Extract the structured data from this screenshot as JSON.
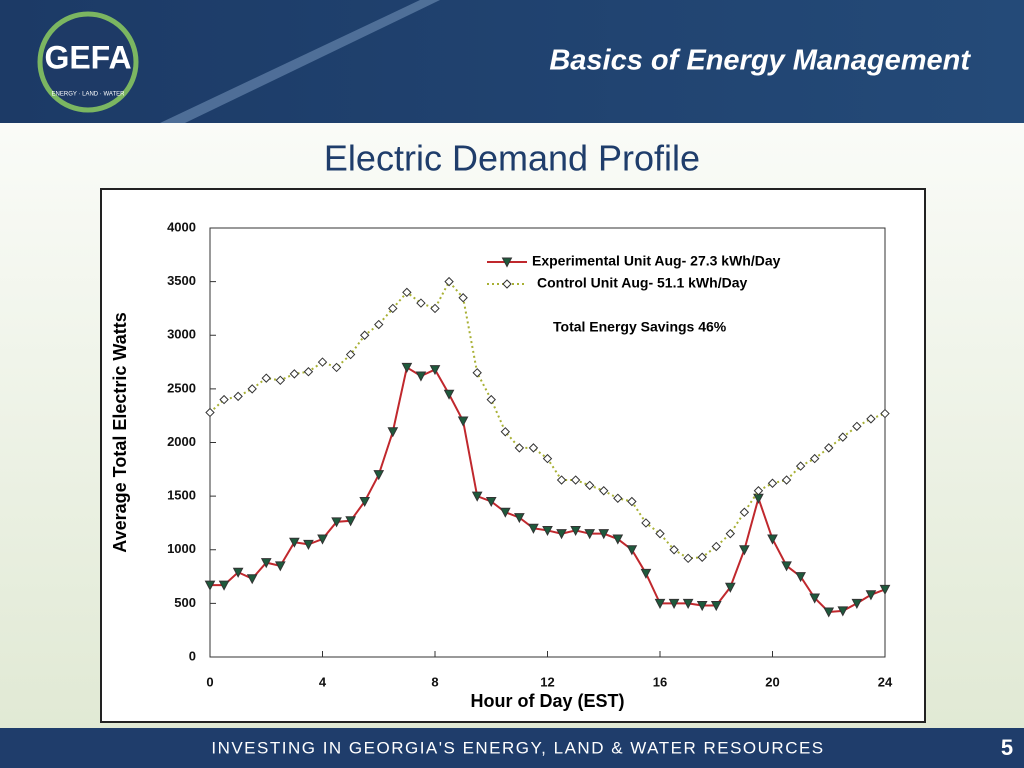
{
  "header": {
    "title": "Basics of Energy Management",
    "logo": "GEFA",
    "logo_tagline": "ENERGY · LAND · WATER"
  },
  "footer": {
    "text": "INVESTING IN GEORGIA'S ENERGY, LAND & WATER RESOURCES",
    "page": "5"
  },
  "chart_data": {
    "type": "line",
    "title": "Electric Demand Profile",
    "xlabel": "Hour of Day (EST)",
    "ylabel": "Average Total Electric Watts",
    "annotation": "Total Energy Savings 46%",
    "x": [
      0,
      0.5,
      1,
      1.5,
      2,
      2.5,
      3,
      3.5,
      4,
      4.5,
      5,
      5.5,
      6,
      6.5,
      7,
      7.5,
      8,
      8.5,
      9,
      9.5,
      10,
      10.5,
      11,
      11.5,
      12,
      12.5,
      13,
      13.5,
      14,
      14.5,
      15,
      15.5,
      16,
      16.5,
      17,
      17.5,
      18,
      18.5,
      19,
      19.5,
      20,
      20.5,
      21,
      21.5,
      22,
      22.5,
      23,
      23.5,
      24
    ],
    "series": [
      {
        "name": "Experimental Unit Aug- 27.3 kWh/Day",
        "color": "#c0282d",
        "marker_color": "#1e5a3c",
        "marker": "triangle",
        "values": [
          670,
          670,
          790,
          730,
          880,
          850,
          1070,
          1050,
          1100,
          1260,
          1270,
          1450,
          1700,
          2100,
          2700,
          2620,
          2680,
          2450,
          2200,
          1500,
          1450,
          1350,
          1300,
          1200,
          1180,
          1150,
          1180,
          1150,
          1150,
          1100,
          1000,
          780,
          500,
          500,
          500,
          480,
          480,
          650,
          1000,
          1480,
          1100,
          850,
          750,
          550,
          420,
          430,
          500,
          580,
          630
        ]
      },
      {
        "name": "Control Unit Aug- 51.1 kWh/Day",
        "color": "#a8b034",
        "marker_color": "#ffffff",
        "marker": "diamond",
        "values": [
          2280,
          2400,
          2430,
          2500,
          2600,
          2580,
          2640,
          2660,
          2750,
          2700,
          2820,
          3000,
          3100,
          3250,
          3400,
          3300,
          3250,
          3500,
          3350,
          2650,
          2400,
          2100,
          1950,
          1950,
          1850,
          1650,
          1650,
          1600,
          1550,
          1480,
          1450,
          1250,
          1150,
          1000,
          920,
          930,
          1030,
          1150,
          1350,
          1550,
          1620,
          1650,
          1780,
          1850,
          1950,
          2050,
          2150,
          2220,
          2270
        ]
      }
    ],
    "xlim": [
      0,
      24
    ],
    "xticks": [
      0,
      4,
      8,
      12,
      16,
      20,
      24
    ],
    "ylim": [
      0,
      4000
    ],
    "yticks": [
      0,
      500,
      1000,
      1500,
      2000,
      2500,
      3000,
      3500,
      4000
    ],
    "grid": false
  }
}
